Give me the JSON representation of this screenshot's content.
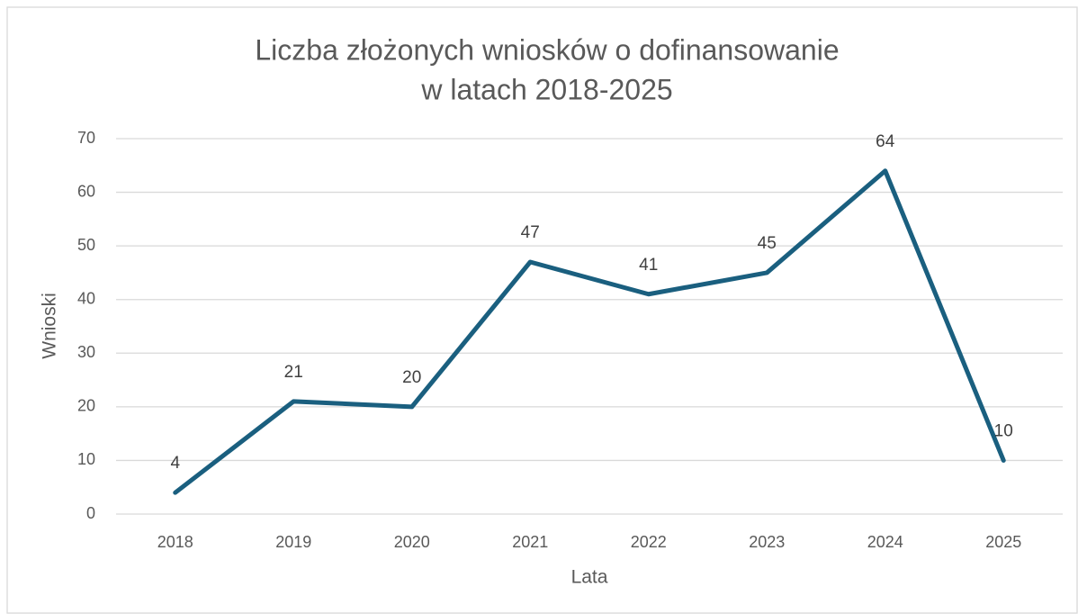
{
  "chart_data": {
    "type": "line",
    "title": [
      "Liczba złożonych wniosków o dofinansowanie",
      "w latach 2018-2025"
    ],
    "x_label": "Lata",
    "y_label": "Wnioski",
    "categories": [
      "2018",
      "2019",
      "2020",
      "2021",
      "2022",
      "2023",
      "2024",
      "2025"
    ],
    "series": [
      {
        "name": "Wnioski",
        "color": "#1a5f7f",
        "values": [
          4,
          21,
          20,
          47,
          41,
          45,
          64,
          10
        ]
      }
    ],
    "ylim": [
      0,
      70
    ],
    "yticks": [
      0,
      10,
      20,
      30,
      40,
      50,
      60,
      70
    ],
    "grid": true,
    "data_labels": true
  }
}
